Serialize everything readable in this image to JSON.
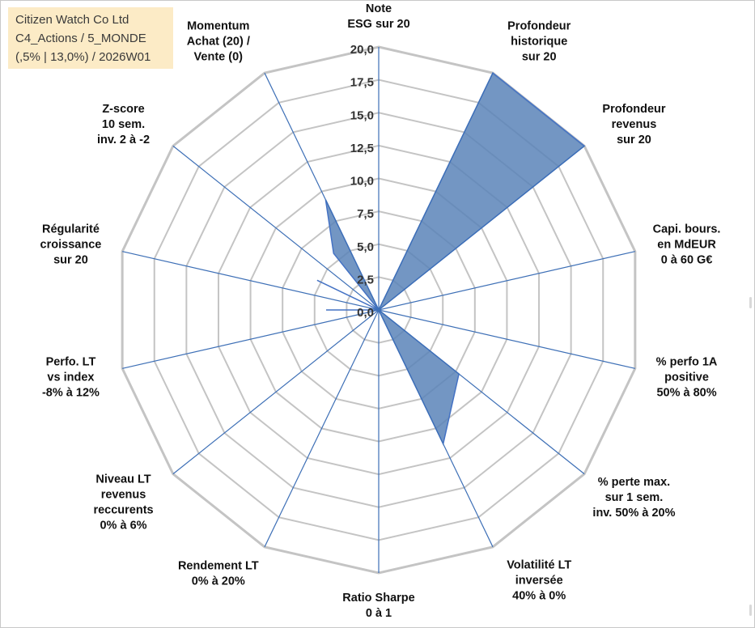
{
  "info_box": {
    "line1": "Citizen Watch Co Ltd",
    "line2": "C4_Actions / 5_MONDE",
    "line3": "(,5% | 13,0%) / 2026W01"
  },
  "colors": {
    "series_fill": "#5b84b8",
    "series_stroke": "#4472c4",
    "spoke": "#3d6fb6",
    "grid": "#c4c4c4",
    "text": "#111111",
    "info_bg": "#fcebc6"
  },
  "chart_data": {
    "type": "radar",
    "title": "",
    "r_range": [
      0,
      20
    ],
    "r_ticks": [
      "0,0",
      "2,5",
      "5,0",
      "7,5",
      "10,0",
      "12,5",
      "15,0",
      "17,5",
      "20,0"
    ],
    "axes": [
      {
        "label": [
          "Note",
          "ESG sur 20"
        ],
        "value": 0
      },
      {
        "label": [
          "Profondeur",
          "historique",
          "sur 20"
        ],
        "value": 20
      },
      {
        "label": [
          "Profondeur",
          "revenus",
          "sur 20"
        ],
        "value": 20
      },
      {
        "label": [
          "Capi. bours.",
          "en MdEUR",
          "0 à 60 G€"
        ],
        "value": 0
      },
      {
        "label": [
          "% perfo 1A",
          "positive",
          "50% à 80%"
        ],
        "value": 0
      },
      {
        "label": [
          "% perte max.",
          "sur 1 sem.",
          "inv. 50% à 20%"
        ],
        "value": 7.8
      },
      {
        "label": [
          "Volatilité LT",
          "inversée",
          "40% à 0%"
        ],
        "value": 11.3
      },
      {
        "label": [
          "Ratio Sharpe",
          "0 à 1"
        ],
        "value": 0
      },
      {
        "label": [
          "Rendement LT",
          "0% à 20%"
        ],
        "value": 0
      },
      {
        "label": [
          "Niveau LT",
          "revenus",
          "reccurents",
          "0% à 6%"
        ],
        "value": 0
      },
      {
        "label": [
          "Perfo. LT",
          "vs index",
          "-8% à 12%"
        ],
        "value": 0
      },
      {
        "label": [
          "Régularité",
          "croissance",
          "sur 20"
        ],
        "value": 0
      },
      {
        "label": [
          "Z-score",
          "10 sem.",
          "inv. 2 à -2"
        ],
        "value": 0
      },
      {
        "label": [
          "Momentum",
          "Achat (20) /",
          "Vente (0)"
        ],
        "value": 9.3
      }
    ],
    "extra_points": [
      {
        "between_axes": [
          10,
          11
        ],
        "value": 4.0
      },
      {
        "between_axes": [
          11,
          12
        ],
        "value": 5.2
      },
      {
        "between_axes": [
          12,
          13
        ],
        "value": 5.5
      }
    ],
    "grid": true,
    "legend": "none"
  }
}
